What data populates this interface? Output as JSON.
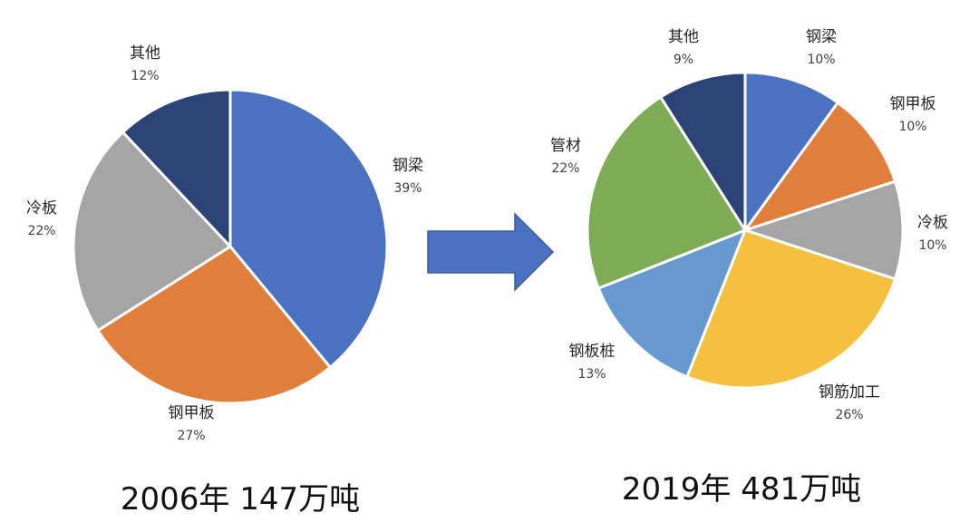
{
  "chart_data": [
    {
      "type": "pie",
      "title": "2006年 147万吨",
      "start_angle_deg": 0,
      "direction": "clockwise",
      "slices": [
        {
          "label": "钢梁",
          "value": 39,
          "value_label": "39%",
          "color": "#4A72C0"
        },
        {
          "label": "钢甲板",
          "value": 27,
          "value_label": "27%",
          "color": "#E07E3C"
        },
        {
          "label": "冷板",
          "value": 22,
          "value_label": "22%",
          "color": "#A5A5A5"
        },
        {
          "label": "其他",
          "value": 12,
          "value_label": "12%",
          "color": "#2C4375"
        }
      ]
    },
    {
      "type": "pie",
      "title": "2019年 481万吨",
      "start_angle_deg": 0,
      "direction": "clockwise",
      "slices": [
        {
          "label": "钢梁",
          "value": 10,
          "value_label": "10%",
          "color": "#4A72C0"
        },
        {
          "label": "钢甲板",
          "value": 10,
          "value_label": "10%",
          "color": "#E07E3C"
        },
        {
          "label": "冷板",
          "value": 10,
          "value_label": "10%",
          "color": "#A5A5A5"
        },
        {
          "label": "钢筋加工",
          "value": 26,
          "value_label": "26%",
          "color": "#F5BF3F"
        },
        {
          "label": "钢板桩",
          "value": 13,
          "value_label": "13%",
          "color": "#6699D0"
        },
        {
          "label": "管材",
          "value": 22,
          "value_label": "22%",
          "color": "#7EAB55"
        },
        {
          "label": "其他",
          "value": 9,
          "value_label": "9%",
          "color": "#2C4375"
        }
      ]
    }
  ],
  "arrow": {
    "icon": "right-arrow-icon",
    "color": "#4A72C0",
    "border_color": "#3A5A9E"
  }
}
